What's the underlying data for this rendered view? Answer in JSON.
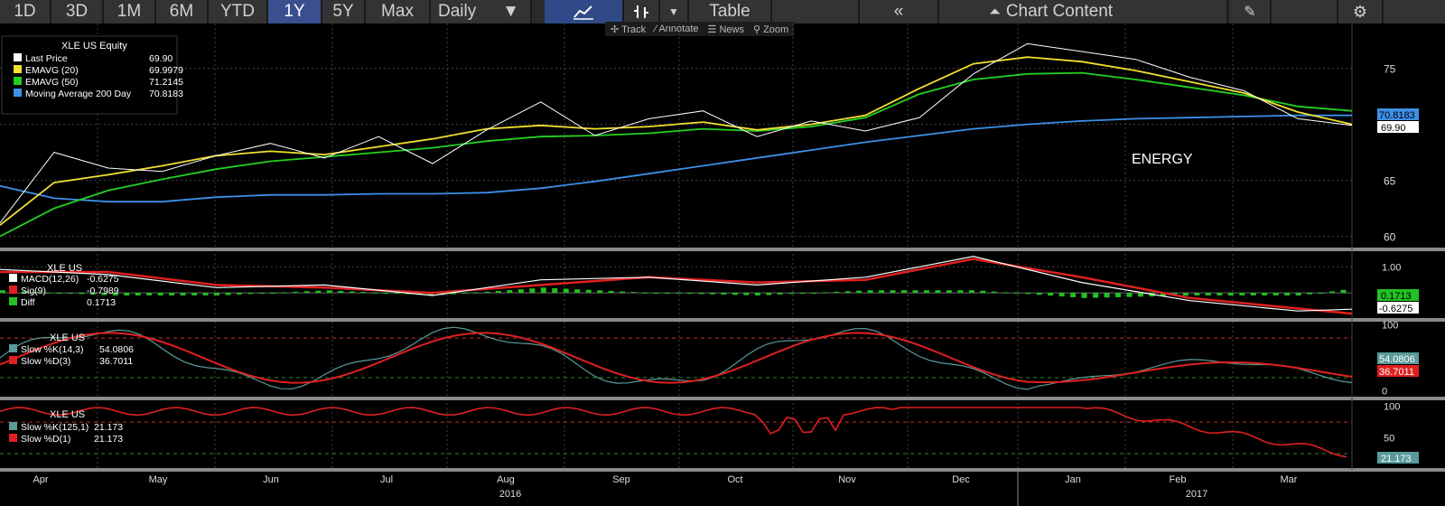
{
  "toolbar": {
    "ranges": [
      "1D",
      "3D",
      "1M",
      "6M",
      "YTD",
      "1Y",
      "5Y",
      "Max"
    ],
    "active_range": "1Y",
    "frequency": "Daily",
    "table_label": "Table",
    "collapse_label": "«",
    "chart_content_label": "Chart Content",
    "sub_items": [
      "Track",
      "Annotate",
      "News",
      "Zoom"
    ]
  },
  "colors": {
    "last_price": "#ffffff",
    "emavg20": "#f0e030",
    "emavg50": "#22d022",
    "ma200": "#3d8fe8",
    "macd": "#ffffff",
    "signal": "#e02020",
    "diff": "#22c022",
    "slowk": "#5a9a9a",
    "slowd": "#e02020"
  },
  "chart_data": [
    {
      "type": "line",
      "panel": "price",
      "legend_title": "XLE US Equity",
      "annotation": "ENERGY",
      "ylim": [
        59,
        79
      ],
      "yticks": [
        60,
        65,
        70,
        75
      ],
      "x_months": [
        "Apr",
        "May",
        "Jun",
        "Jul",
        "Aug",
        "Sep",
        "Oct",
        "Nov",
        "Dec",
        "Jan",
        "Feb",
        "Mar"
      ],
      "x_years": [
        "2016",
        "2017"
      ],
      "series": [
        {
          "name": "Last Price",
          "last": "69.90",
          "x": [
            0,
            10,
            20,
            30,
            40,
            50,
            60,
            70,
            80,
            90,
            100,
            110,
            120,
            130,
            140,
            150,
            160,
            170,
            180,
            190,
            200,
            210,
            220,
            230,
            240,
            250
          ],
          "values": [
            61.2,
            67.5,
            66.1,
            65.8,
            67.2,
            68.3,
            67.0,
            68.9,
            66.5,
            69.5,
            72.0,
            69.0,
            70.5,
            71.2,
            68.9,
            70.3,
            69.4,
            70.6,
            74.5,
            77.2,
            76.5,
            75.8,
            74.2,
            73.0,
            70.5,
            69.9
          ]
        },
        {
          "name": "EMAVG (20)",
          "last": "69.9979",
          "x": [
            0,
            10,
            20,
            30,
            40,
            50,
            60,
            70,
            80,
            90,
            100,
            110,
            120,
            130,
            140,
            150,
            160,
            170,
            180,
            190,
            200,
            210,
            220,
            230,
            240,
            250
          ],
          "values": [
            61.0,
            64.8,
            65.5,
            66.3,
            67.2,
            67.6,
            67.3,
            68.0,
            68.7,
            69.6,
            69.9,
            69.6,
            69.8,
            70.2,
            69.5,
            70.0,
            70.8,
            73.2,
            75.4,
            76.0,
            75.6,
            74.8,
            73.8,
            72.8,
            71.1,
            70.0
          ]
        },
        {
          "name": "EMAVG (50)",
          "last": "71.2145",
          "x": [
            0,
            10,
            20,
            30,
            40,
            50,
            60,
            70,
            80,
            90,
            100,
            110,
            120,
            130,
            140,
            150,
            160,
            170,
            180,
            190,
            200,
            210,
            220,
            230,
            240,
            250
          ],
          "values": [
            60.0,
            62.5,
            64.1,
            65.1,
            66.0,
            66.7,
            67.1,
            67.5,
            67.9,
            68.5,
            68.9,
            69.0,
            69.2,
            69.6,
            69.4,
            69.8,
            70.6,
            72.7,
            74.0,
            74.5,
            74.6,
            74.0,
            73.3,
            72.6,
            71.6,
            71.2
          ]
        },
        {
          "name": "Moving Average 200 Day",
          "last": "70.8183",
          "x": [
            0,
            10,
            20,
            30,
            40,
            50,
            60,
            70,
            80,
            90,
            100,
            110,
            120,
            130,
            140,
            150,
            160,
            170,
            180,
            190,
            200,
            210,
            220,
            230,
            240,
            250
          ],
          "values": [
            64.5,
            63.4,
            63.1,
            63.1,
            63.5,
            63.7,
            63.7,
            63.8,
            63.8,
            63.9,
            64.3,
            64.9,
            65.6,
            66.3,
            67.0,
            67.7,
            68.4,
            69.0,
            69.6,
            70.0,
            70.3,
            70.5,
            70.6,
            70.7,
            70.8,
            70.8
          ]
        }
      ],
      "labels": [
        "70.8183",
        "69.90"
      ]
    },
    {
      "type": "line",
      "panel": "macd",
      "legend_title": "XLE US",
      "ylim": [
        -0.9,
        1.6
      ],
      "yticks": [
        1.0
      ],
      "tick_labels": [
        "1.00"
      ],
      "series": [
        {
          "name": "MACD(12,26)",
          "last": "-0.6275",
          "x": [
            0,
            20,
            40,
            60,
            80,
            100,
            120,
            140,
            160,
            180,
            200,
            220,
            240,
            250
          ],
          "values": [
            0.9,
            0.7,
            0.2,
            0.3,
            -0.1,
            0.5,
            0.6,
            0.3,
            0.6,
            1.4,
            0.4,
            -0.3,
            -0.7,
            -0.63
          ]
        },
        {
          "name": "Sig(9)",
          "last": "-0.7989",
          "x": [
            0,
            20,
            40,
            60,
            80,
            100,
            120,
            140,
            160,
            180,
            200,
            220,
            240,
            250
          ],
          "values": [
            0.8,
            0.8,
            0.3,
            0.2,
            0.0,
            0.3,
            0.6,
            0.4,
            0.5,
            1.3,
            0.6,
            -0.2,
            -0.6,
            -0.8
          ]
        },
        {
          "name": "Diff",
          "last": "0.1713"
        }
      ],
      "labels": [
        "0.1713",
        "-0.6275"
      ]
    },
    {
      "type": "line",
      "panel": "stoch14",
      "legend_title": "XLE US",
      "ylim": [
        -5,
        105
      ],
      "yticks": [
        0,
        50,
        100
      ],
      "series": [
        {
          "name": "Slow %K(14,3)",
          "last": "54.0806"
        },
        {
          "name": "Slow %D(3)",
          "last": "36.7011"
        }
      ],
      "labels": [
        "54.0806",
        "36.7011"
      ]
    },
    {
      "type": "line",
      "panel": "stoch125",
      "legend_title": "XLE US",
      "ylim": [
        5,
        108
      ],
      "yticks": [
        50,
        100
      ],
      "series": [
        {
          "name": "Slow %K(125,1)",
          "last": "21.173"
        },
        {
          "name": "Slow %D(1)",
          "last": "21.173"
        }
      ],
      "labels": [
        "21.173"
      ]
    }
  ]
}
